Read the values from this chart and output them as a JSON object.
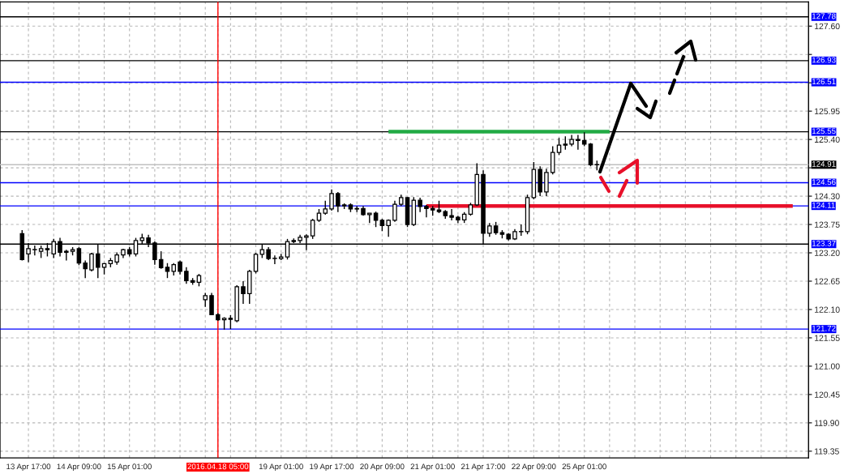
{
  "chart_data": {
    "type": "candlestick",
    "categories": [
      null,
      "13 Apr 17:00",
      null,
      null,
      null,
      null,
      null,
      null,
      null,
      "14 Apr 09:00",
      null,
      null,
      null,
      null,
      null,
      null,
      null,
      "15 Apr 01:00",
      null,
      null,
      null,
      null,
      null,
      null,
      null,
      null,
      null,
      null,
      null,
      null,
      null,
      "2016.04.18 05:00",
      null,
      null,
      null,
      null,
      null,
      null,
      null,
      null,
      null,
      "19 Apr 01:00",
      null,
      null,
      null,
      null,
      null,
      null,
      null,
      "19 Apr 17:00",
      null,
      null,
      null,
      null,
      null,
      null,
      null,
      "20 Apr 09:00",
      null,
      null,
      null,
      null,
      null,
      null,
      null,
      "21 Apr 01:00",
      null,
      null,
      null,
      null,
      null,
      null,
      null,
      "21 Apr 17:00",
      null,
      null,
      null,
      null,
      null,
      null,
      null,
      "22 Apr 09:00",
      null,
      null,
      null,
      null,
      null,
      null,
      null,
      "25 Apr 01:00",
      null,
      null,
      null,
      null,
      null,
      null,
      null,
      null,
      null,
      null,
      null,
      null,
      null,
      null,
      null,
      null,
      null,
      null,
      null,
      null,
      null,
      null,
      null,
      null,
      null,
      null,
      null,
      null,
      null,
      null,
      null,
      null,
      null,
      null,
      null
    ],
    "ohlc": [
      [
        123.57,
        123.64,
        123.05,
        123.07
      ],
      [
        123.18,
        123.39,
        123.02,
        123.28
      ],
      [
        123.26,
        123.34,
        123.15,
        123.26
      ],
      [
        123.23,
        123.34,
        123.1,
        123.28
      ],
      [
        123.28,
        123.39,
        123.13,
        123.26
      ],
      [
        123.18,
        123.47,
        123.1,
        123.42
      ],
      [
        123.42,
        123.49,
        123.13,
        123.21
      ],
      [
        123.21,
        123.26,
        123.05,
        123.23
      ],
      [
        123.23,
        123.31,
        123.15,
        123.26
      ],
      [
        123.28,
        123.31,
        122.96,
        123.0
      ],
      [
        123.0,
        123.05,
        122.71,
        122.89
      ],
      [
        122.87,
        123.2,
        122.84,
        123.18
      ],
      [
        123.18,
        123.36,
        122.71,
        122.92
      ],
      [
        122.92,
        123.0,
        122.78,
        122.99
      ],
      [
        122.99,
        123.1,
        122.92,
        123.05
      ],
      [
        123.02,
        123.21,
        122.97,
        123.16
      ],
      [
        123.16,
        123.28,
        123.1,
        123.26
      ],
      [
        123.26,
        123.31,
        123.13,
        123.18
      ],
      [
        123.18,
        123.49,
        123.13,
        123.44
      ],
      [
        123.44,
        123.57,
        123.36,
        123.49
      ],
      [
        123.49,
        123.55,
        123.31,
        123.39
      ],
      [
        123.39,
        123.42,
        122.97,
        123.07
      ],
      [
        123.07,
        123.23,
        122.89,
        122.91
      ],
      [
        122.92,
        123.0,
        122.71,
        122.84
      ],
      [
        122.84,
        123.0,
        122.76,
        122.97
      ],
      [
        123.02,
        123.05,
        122.78,
        122.84
      ],
      [
        122.84,
        122.92,
        122.6,
        122.66
      ],
      [
        122.66,
        122.71,
        122.58,
        122.63
      ],
      [
        122.63,
        122.79,
        122.55,
        122.76
      ],
      [
        122.29,
        122.42,
        122.15,
        122.37
      ],
      [
        122.37,
        122.42,
        121.99,
        122.0
      ],
      [
        122.0,
        122.03,
        121.88,
        121.9
      ],
      [
        121.9,
        121.95,
        121.71,
        121.93
      ],
      [
        121.93,
        121.99,
        121.72,
        121.91
      ],
      [
        121.88,
        122.57,
        121.85,
        122.54
      ],
      [
        122.54,
        122.65,
        122.21,
        122.41
      ],
      [
        122.41,
        122.87,
        122.21,
        122.84
      ],
      [
        122.84,
        123.2,
        122.8,
        123.17
      ],
      [
        123.17,
        123.36,
        123.1,
        123.26
      ],
      [
        123.26,
        123.31,
        123.06,
        123.09
      ],
      [
        123.09,
        123.15,
        122.98,
        123.09
      ],
      [
        123.09,
        123.18,
        123.06,
        123.12
      ],
      [
        123.12,
        123.47,
        123.07,
        123.42
      ],
      [
        123.42,
        123.48,
        123.39,
        123.44
      ],
      [
        123.44,
        123.55,
        123.39,
        123.5
      ],
      [
        123.5,
        123.56,
        123.25,
        123.53
      ],
      [
        123.53,
        123.86,
        123.47,
        123.83
      ],
      [
        123.83,
        124.05,
        123.8,
        123.97
      ],
      [
        123.97,
        124.21,
        123.94,
        124.05
      ],
      [
        124.05,
        124.43,
        124.02,
        124.35
      ],
      [
        124.35,
        124.38,
        123.99,
        124.11
      ],
      [
        124.11,
        124.16,
        124.05,
        124.13
      ],
      [
        124.13,
        124.16,
        123.99,
        124.05
      ],
      [
        124.05,
        124.11,
        123.99,
        124.06
      ],
      [
        124.06,
        124.11,
        123.92,
        123.94
      ],
      [
        123.94,
        123.97,
        123.78,
        123.97
      ],
      [
        123.97,
        124.0,
        123.7,
        123.83
      ],
      [
        123.83,
        123.86,
        123.62,
        123.73
      ],
      [
        123.73,
        123.85,
        123.51,
        123.83
      ],
      [
        123.83,
        124.21,
        123.8,
        124.14
      ],
      [
        124.14,
        124.33,
        124.11,
        124.27
      ],
      [
        124.27,
        124.28,
        123.7,
        123.75
      ],
      [
        123.75,
        124.28,
        123.72,
        124.22
      ],
      [
        124.22,
        124.27,
        123.99,
        124.1
      ],
      [
        124.1,
        124.13,
        123.89,
        124.06
      ],
      [
        124.06,
        124.11,
        123.92,
        124.03
      ],
      [
        124.03,
        124.21,
        123.97,
        124.0
      ],
      [
        124.0,
        124.03,
        123.86,
        123.92
      ],
      [
        123.92,
        124.05,
        123.83,
        123.89
      ],
      [
        123.89,
        123.92,
        123.78,
        123.84
      ],
      [
        123.84,
        123.99,
        123.78,
        123.95
      ],
      [
        123.95,
        124.17,
        123.92,
        124.13
      ],
      [
        124.13,
        124.94,
        124.11,
        124.72
      ],
      [
        124.72,
        124.8,
        123.36,
        123.58
      ],
      [
        123.58,
        123.78,
        123.51,
        123.72
      ],
      [
        123.72,
        123.8,
        123.55,
        123.59
      ],
      [
        123.59,
        123.64,
        123.48,
        123.56
      ],
      [
        123.56,
        123.58,
        123.44,
        123.47
      ],
      [
        123.47,
        123.66,
        123.45,
        123.61
      ],
      [
        123.61,
        123.75,
        123.53,
        123.61
      ],
      [
        123.61,
        124.33,
        123.56,
        124.27
      ],
      [
        124.27,
        124.96,
        124.24,
        124.82
      ],
      [
        124.82,
        124.88,
        124.3,
        124.38
      ],
      [
        124.38,
        124.83,
        124.3,
        124.76
      ],
      [
        124.76,
        125.27,
        124.72,
        125.15
      ],
      [
        125.15,
        125.43,
        125.1,
        125.29
      ],
      [
        125.29,
        125.46,
        125.2,
        125.31
      ],
      [
        125.31,
        125.49,
        125.27,
        125.4
      ],
      [
        125.4,
        125.49,
        125.2,
        125.38
      ],
      [
        125.38,
        125.54,
        125.27,
        125.31
      ],
      [
        125.31,
        125.33,
        124.88,
        124.91
      ],
      [
        124.91,
        124.99,
        124.8,
        124.91
      ],
      null,
      null,
      null,
      null,
      null,
      null,
      null,
      null,
      null,
      null,
      null,
      null,
      null,
      null,
      null,
      null,
      null,
      null,
      null,
      null,
      null,
      null,
      null,
      null,
      null,
      null,
      null,
      null,
      null,
      null,
      null,
      null,
      null
    ],
    "series": [
      {
        "type": "line",
        "color": "#22aa44",
        "values": [
          null,
          null,
          null,
          null,
          null,
          null,
          null,
          null,
          null,
          null,
          null,
          null,
          null,
          null,
          null,
          null,
          null,
          null,
          null,
          null,
          null,
          null,
          null,
          null,
          null,
          null,
          null,
          null,
          null,
          null,
          null,
          null,
          null,
          null,
          null,
          null,
          null,
          null,
          null,
          null,
          null,
          null,
          null,
          null,
          null,
          null,
          null,
          null,
          null,
          null,
          null,
          null,
          null,
          null,
          null,
          null,
          null,
          null,
          125.55,
          125.55,
          125.55,
          125.55,
          125.55,
          125.55,
          125.55,
          125.55,
          125.55,
          125.55,
          125.55,
          125.55,
          125.55,
          125.55,
          125.55,
          125.55,
          125.55,
          125.55,
          125.55,
          125.55,
          125.55,
          125.55,
          125.55,
          125.55,
          125.55,
          125.55,
          125.55,
          125.55,
          125.55,
          125.55,
          125.55,
          125.55,
          125.55,
          125.55,
          125.55,
          125.55,
          null,
          null,
          null,
          null,
          null,
          null,
          null,
          null,
          null,
          null,
          null,
          null,
          null,
          null,
          null,
          null,
          null,
          null,
          null,
          null,
          null,
          null,
          null,
          null,
          null,
          null,
          null,
          null,
          null,
          null,
          null
        ]
      },
      {
        "type": "line",
        "color": "#e8102a",
        "values": [
          null,
          null,
          null,
          null,
          null,
          null,
          null,
          null,
          null,
          null,
          null,
          null,
          null,
          null,
          null,
          null,
          null,
          null,
          null,
          null,
          null,
          null,
          null,
          null,
          null,
          null,
          null,
          null,
          null,
          null,
          null,
          null,
          null,
          null,
          null,
          null,
          null,
          null,
          null,
          null,
          null,
          null,
          null,
          null,
          null,
          null,
          null,
          null,
          null,
          null,
          null,
          null,
          null,
          null,
          null,
          null,
          null,
          null,
          null,
          null,
          null,
          null,
          null,
          null,
          124.11,
          124.11,
          124.11,
          124.11,
          124.11,
          124.11,
          124.11,
          124.11,
          124.11,
          124.11,
          124.11,
          124.11,
          124.11,
          124.11,
          124.11,
          124.11,
          124.11,
          124.11,
          124.11,
          124.11,
          124.11,
          124.11,
          124.11,
          124.11,
          124.11,
          124.11,
          124.11,
          124.11,
          124.11,
          124.11,
          124.11,
          124.11,
          124.11,
          124.11,
          124.11,
          124.11,
          124.11,
          124.11,
          124.11,
          124.11,
          124.11,
          124.11,
          124.11,
          124.11,
          124.11,
          124.11,
          124.11,
          124.11,
          124.11,
          124.11,
          124.11,
          124.11,
          124.11,
          124.11,
          124.11,
          124.11,
          124.11,
          124.11,
          124.11,
          null,
          null
        ]
      }
    ],
    "ref_lines": [
      {
        "axis": "y",
        "value": 127.78,
        "label": "127.78",
        "color": "#000000"
      },
      {
        "axis": "y",
        "value": 126.93,
        "label": "126.93",
        "color": "#000000"
      },
      {
        "axis": "y",
        "value": 126.51,
        "label": "126.51",
        "color": "#0000ff"
      },
      {
        "axis": "y",
        "value": 125.55,
        "label": "125.55",
        "color": "#000000"
      },
      {
        "axis": "y",
        "value": 124.91,
        "label": "124.91",
        "color": "#c0c0c0"
      },
      {
        "axis": "y",
        "value": 124.56,
        "label": "124.56",
        "color": "#0000ff"
      },
      {
        "axis": "y",
        "value": 124.11,
        "label": "124.11",
        "color": "#0000ff"
      },
      {
        "axis": "y",
        "value": 123.37,
        "label": "123.37",
        "color": "#000000"
      },
      {
        "axis": "y",
        "value": 121.72,
        "label": "121.72",
        "color": "#0000ff"
      },
      {
        "axis": "x",
        "value": "2016.04.18 05:00",
        "color": "#ff0000"
      }
    ],
    "ylim": [
      119.22,
      128.07
    ],
    "yticks": [
      {
        "value": 127.6,
        "label": "127.60"
      },
      {
        "value": 127.05,
        "label": null
      },
      {
        "value": 126.5,
        "label": null
      },
      {
        "value": 125.95,
        "label": "125.95"
      },
      {
        "value": 125.4,
        "label": "125.40"
      },
      {
        "value": 124.85,
        "label": null
      },
      {
        "value": 124.3,
        "label": "124.30"
      },
      {
        "value": 123.75,
        "label": "123.75"
      },
      {
        "value": 123.2,
        "label": "123.20"
      },
      {
        "value": 122.65,
        "label": "122.65"
      },
      {
        "value": 122.1,
        "label": "122.10"
      },
      {
        "value": 121.55,
        "label": "121.55"
      },
      {
        "value": 121.0,
        "label": "121.00"
      },
      {
        "value": 120.45,
        "label": "120.45"
      },
      {
        "value": 119.9,
        "label": "119.90"
      },
      {
        "value": 119.35,
        "label": "119.35"
      }
    ],
    "grid": true
  }
}
